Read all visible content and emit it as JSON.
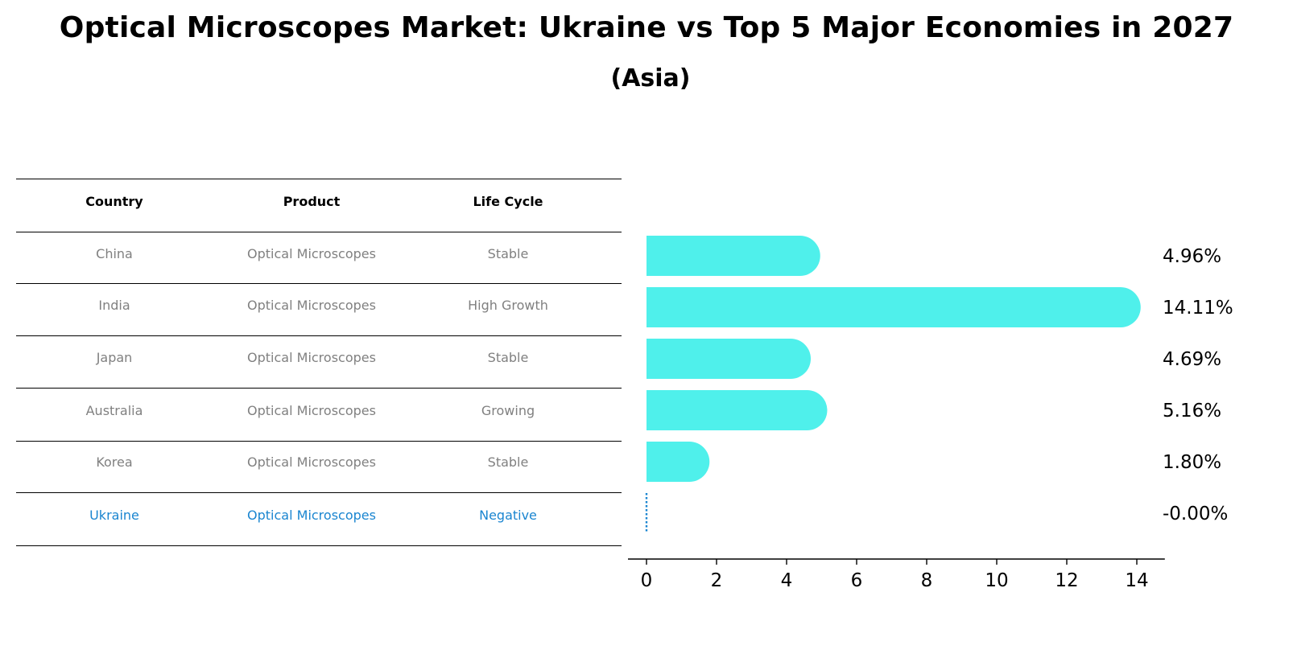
{
  "title": "Optical Microscopes Market: Ukraine vs Top 5 Major Economies in 2027",
  "subtitle": "(Asia)",
  "table": {
    "headers": [
      "Country",
      "Product",
      "Life Cycle"
    ],
    "rows": [
      {
        "country": "China",
        "product": "Optical Microscopes",
        "life_cycle": "Stable"
      },
      {
        "country": "India",
        "product": "Optical Microscopes",
        "life_cycle": "High Growth"
      },
      {
        "country": "Japan",
        "product": "Optical Microscopes",
        "life_cycle": "Stable"
      },
      {
        "country": "Australia",
        "product": "Optical Microscopes",
        "life_cycle": "Growing"
      },
      {
        "country": "Korea",
        "product": "Optical Microscopes",
        "life_cycle": "Stable"
      },
      {
        "country": "Ukraine",
        "product": "Optical Microscopes",
        "life_cycle": "Negative"
      }
    ]
  },
  "colors": {
    "bar": "#4ff0eb",
    "highlight": "#1a85d0",
    "muted_text": "#808080"
  },
  "chart_data": {
    "type": "bar",
    "orientation": "horizontal",
    "categories": [
      "China",
      "India",
      "Japan",
      "Australia",
      "Korea",
      "Ukraine"
    ],
    "values": [
      4.96,
      14.11,
      4.69,
      5.16,
      1.8,
      -0.0
    ],
    "labels": [
      "4.96%",
      "14.11%",
      "4.69%",
      "5.16%",
      "1.80%",
      "-0.00%"
    ],
    "xlim": [
      -0.7,
      14.8
    ],
    "xticks": [
      0,
      2,
      4,
      6,
      8,
      10,
      12,
      14
    ],
    "xlabel": "",
    "ylabel": ""
  }
}
